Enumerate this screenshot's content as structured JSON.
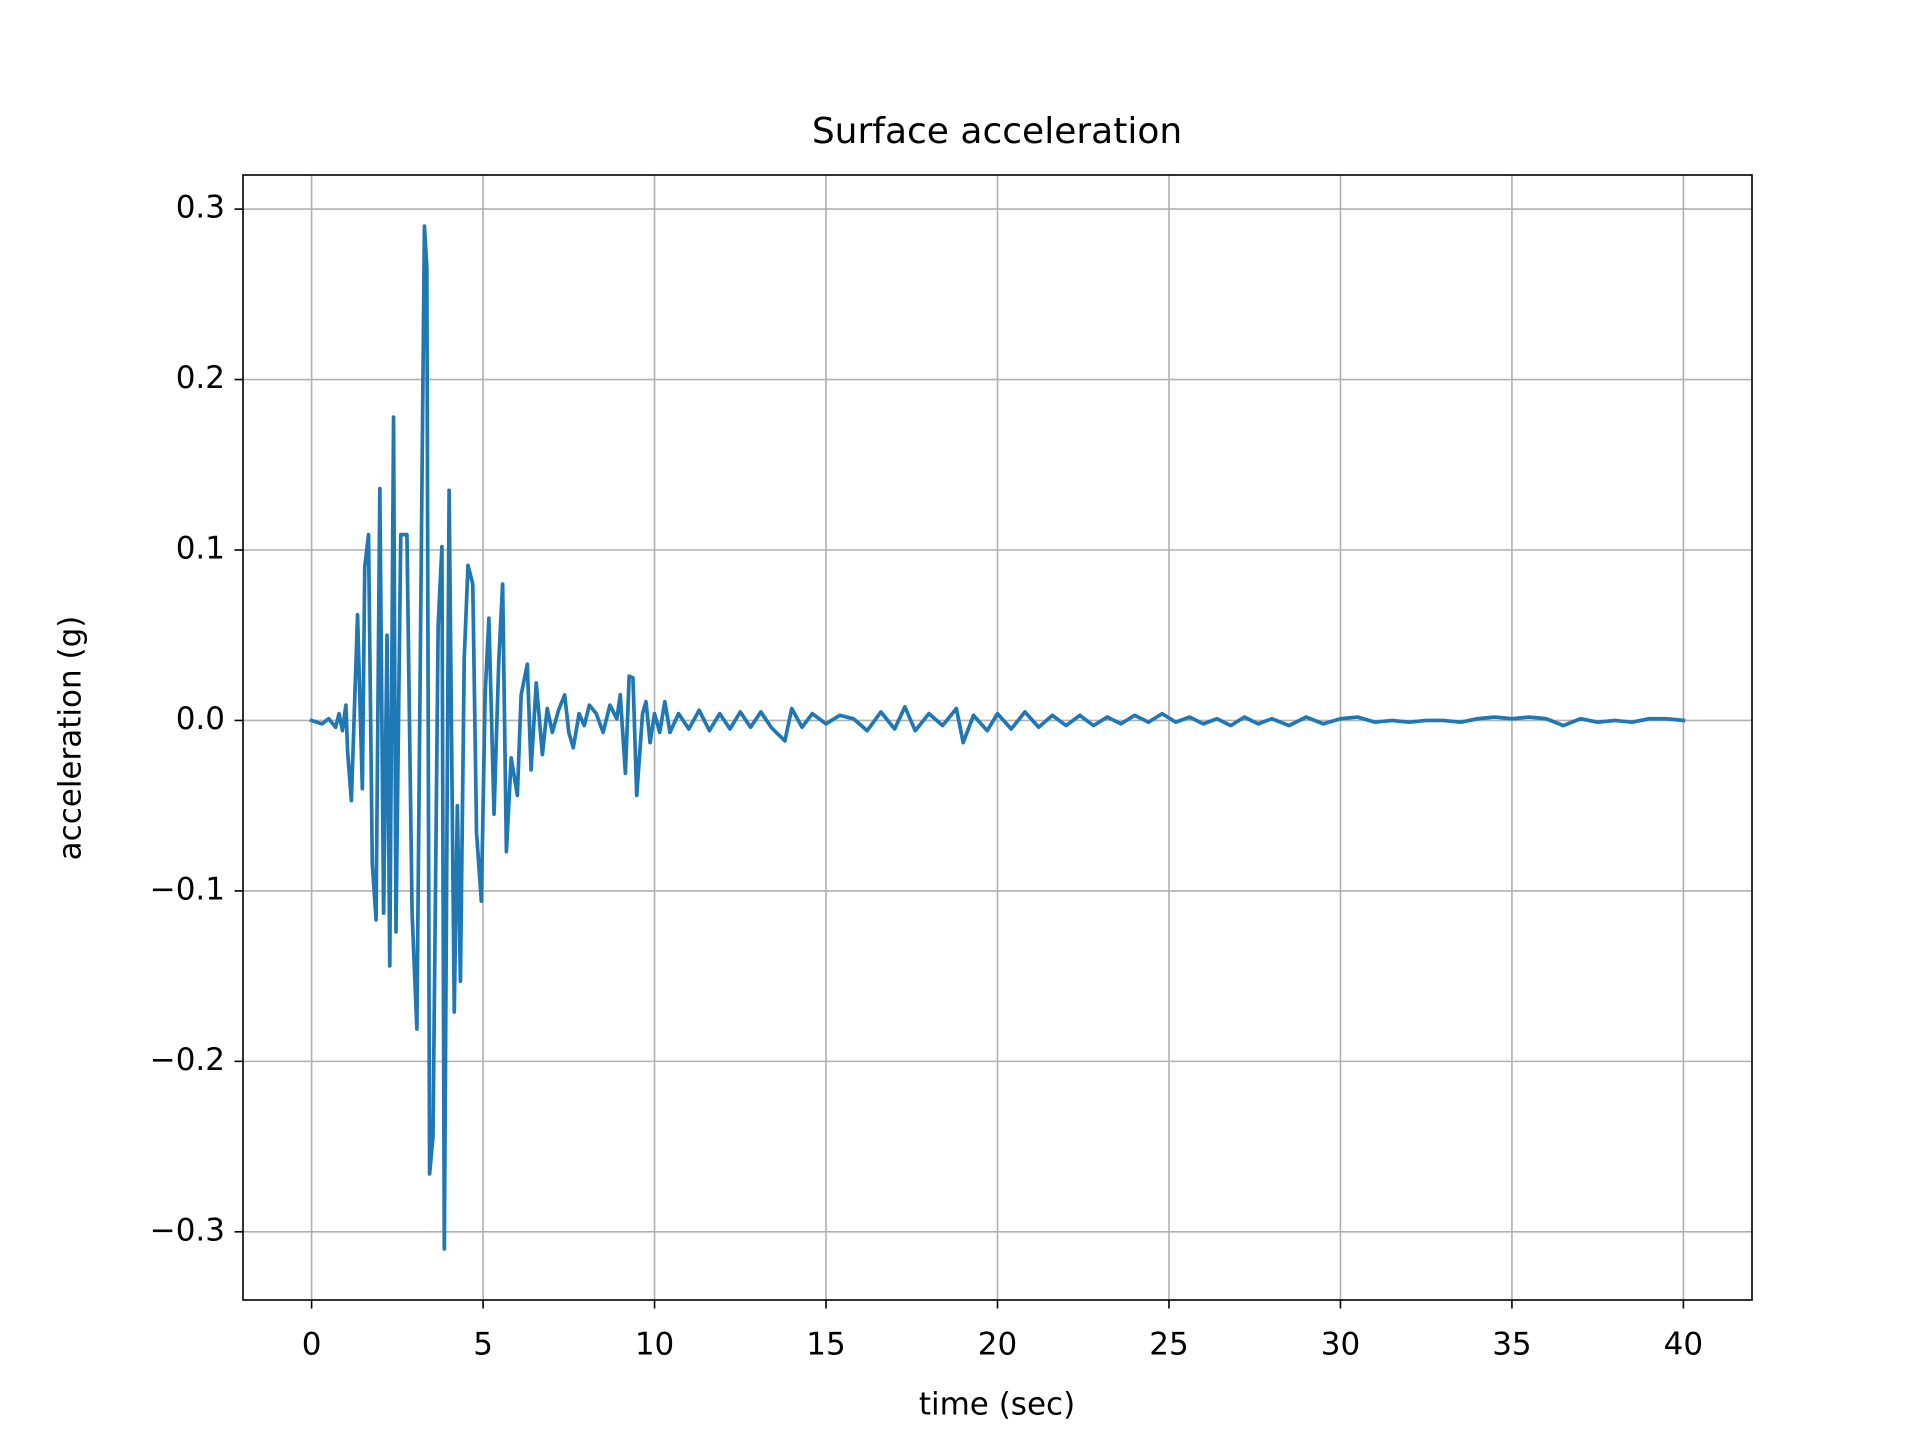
{
  "chart_data": {
    "type": "line",
    "title": "Surface acceleration",
    "x_label": "time (sec)",
    "y_label": "acceleration (g)",
    "color": "#1f77b4",
    "grid": true,
    "xlim": [
      -2,
      42
    ],
    "ylim": [
      -0.34,
      0.32
    ],
    "xticks": [
      0,
      5,
      10,
      15,
      20,
      25,
      30,
      35,
      40
    ],
    "yticks": [
      {
        "value": -0.3,
        "label": "−0.3"
      },
      {
        "value": -0.2,
        "label": "−0.2"
      },
      {
        "value": -0.1,
        "label": "−0.1"
      },
      {
        "value": 0,
        "label": "0.0"
      },
      {
        "value": 0.1,
        "label": "0.1"
      },
      {
        "value": 0.2,
        "label": "0.2"
      },
      {
        "value": 0.3,
        "label": "0.3"
      }
    ],
    "x": [
      0,
      0.3,
      0.5,
      0.7,
      0.8,
      0.9,
      1.0,
      1.05,
      1.16,
      1.34,
      1.48,
      1.55,
      1.66,
      1.77,
      1.88,
      1.99,
      2.1,
      2.2,
      2.28,
      2.39,
      2.46,
      2.6,
      2.78,
      2.93,
      3.07,
      3.18,
      3.29,
      3.36,
      3.44,
      3.54,
      3.69,
      3.8,
      3.87,
      4.01,
      4.16,
      4.25,
      4.34,
      4.45,
      4.56,
      4.7,
      4.81,
      4.95,
      5.06,
      5.17,
      5.32,
      5.46,
      5.57,
      5.68,
      5.82,
      6.0,
      6.11,
      6.29,
      6.4,
      6.55,
      6.73,
      6.87,
      7.02,
      7.2,
      7.38,
      7.5,
      7.63,
      7.8,
      7.95,
      8.1,
      8.3,
      8.5,
      8.7,
      8.9,
      9.0,
      9.15,
      9.26,
      9.37,
      9.48,
      9.65,
      9.75,
      9.87,
      10.0,
      10.15,
      10.3,
      10.45,
      10.7,
      11.0,
      11.3,
      11.6,
      11.9,
      12.2,
      12.5,
      12.8,
      13.1,
      13.4,
      13.8,
      14.0,
      14.3,
      14.6,
      15.0,
      15.4,
      15.8,
      16.2,
      16.6,
      17.0,
      17.3,
      17.6,
      18.0,
      18.4,
      18.8,
      19.0,
      19.3,
      19.7,
      20.0,
      20.4,
      20.8,
      21.2,
      21.6,
      22.0,
      22.4,
      22.8,
      23.2,
      23.6,
      24.0,
      24.4,
      24.8,
      25.2,
      25.6,
      26.0,
      26.4,
      26.8,
      27.2,
      27.6,
      28.0,
      28.5,
      29.0,
      29.5,
      30.0,
      30.5,
      31.0,
      31.5,
      32.0,
      32.5,
      33.0,
      33.5,
      34.0,
      34.5,
      35.0,
      35.5,
      36.0,
      36.5,
      37.0,
      37.5,
      38.0,
      38.5,
      39.0,
      39.5,
      40.0
    ],
    "values": [
      0,
      -0.002,
      0.001,
      -0.004,
      0.004,
      -0.006,
      0.009,
      -0.018,
      -0.047,
      0.062,
      -0.04,
      0.09,
      0.109,
      -0.084,
      -0.117,
      0.136,
      -0.113,
      0.05,
      -0.144,
      0.178,
      -0.124,
      0.109,
      0.109,
      -0.113,
      -0.181,
      0.058,
      0.29,
      0.266,
      -0.266,
      -0.244,
      0.055,
      0.102,
      -0.31,
      0.135,
      -0.171,
      -0.05,
      -0.153,
      0.036,
      0.091,
      0.08,
      -0.066,
      -0.106,
      0.015,
      0.06,
      -0.055,
      0.036,
      0.08,
      -0.077,
      -0.022,
      -0.044,
      0.015,
      0.033,
      -0.029,
      0.022,
      -0.02,
      0.007,
      -0.007,
      0.006,
      0.015,
      -0.007,
      -0.016,
      0.004,
      -0.003,
      0.009,
      0.004,
      -0.007,
      0.009,
      0.001,
      0.015,
      -0.031,
      0.026,
      0.025,
      -0.044,
      0.004,
      0.011,
      -0.013,
      0.004,
      -0.007,
      0.011,
      -0.007,
      0.004,
      -0.005,
      0.006,
      -0.006,
      0.004,
      -0.005,
      0.005,
      -0.004,
      0.005,
      -0.004,
      -0.012,
      0.007,
      -0.004,
      0.004,
      -0.002,
      0.003,
      0.001,
      -0.006,
      0.005,
      -0.005,
      0.008,
      -0.006,
      0.004,
      -0.003,
      0.007,
      -0.013,
      0.003,
      -0.006,
      0.004,
      -0.005,
      0.005,
      -0.004,
      0.003,
      -0.003,
      0.003,
      -0.003,
      0.002,
      -0.002,
      0.003,
      -0.001,
      0.004,
      -0.001,
      0.002,
      -0.002,
      0.001,
      -0.003,
      0.002,
      -0.002,
      0.001,
      -0.003,
      0.002,
      -0.002,
      0.001,
      0.002,
      -0.001,
      0,
      -0.001,
      0,
      0,
      -0.001,
      0.001,
      0.002,
      0.001,
      0.002,
      0.001,
      -0.003,
      0.001,
      -0.001,
      0,
      -0.001,
      0.001,
      0.001,
      0
    ]
  }
}
